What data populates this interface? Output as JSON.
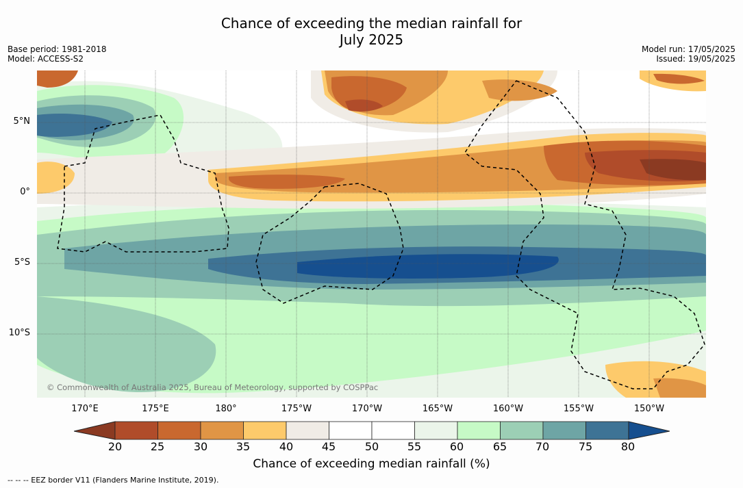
{
  "title_line1": "Chance of exceeding the median rainfall for",
  "title_line2": "July 2025",
  "meta_left": {
    "line1": "Base period: 1981-2018",
    "line2": "Model: ACCESS-S2"
  },
  "meta_right": {
    "line1": "Model run: 17/05/2025",
    "line2": "Issued: 19/05/2025"
  },
  "copyright": "© Commonwealth of Australia 2025, Bureau of Meteorology, supported by COSPPac",
  "lon_labels": [
    "170°E",
    "175°E",
    "180°",
    "175°W",
    "170°W",
    "165°W",
    "160°W",
    "155°W",
    "150°W"
  ],
  "lat_labels": [
    "5°N",
    "0°",
    "5°S",
    "10°S"
  ],
  "colorbar": {
    "ticks": [
      "20",
      "25",
      "30",
      "35",
      "40",
      "45",
      "50",
      "55",
      "60",
      "65",
      "70",
      "75",
      "80"
    ],
    "label": "Chance of exceeding median rainfall (%)",
    "colors": [
      "#8b3a22",
      "#b04c2a",
      "#c9682f",
      "#e09545",
      "#fdca6b",
      "#f0ece6",
      "#ffffff",
      "#ffffff",
      "#ebf5ea",
      "#c6fac6",
      "#9ccfb5",
      "#6ea5a5",
      "#3e7395",
      "#164f8f"
    ]
  },
  "footer": "-- -- -- EEZ border V11 (Flanders Marine Institute, 2019)."
}
